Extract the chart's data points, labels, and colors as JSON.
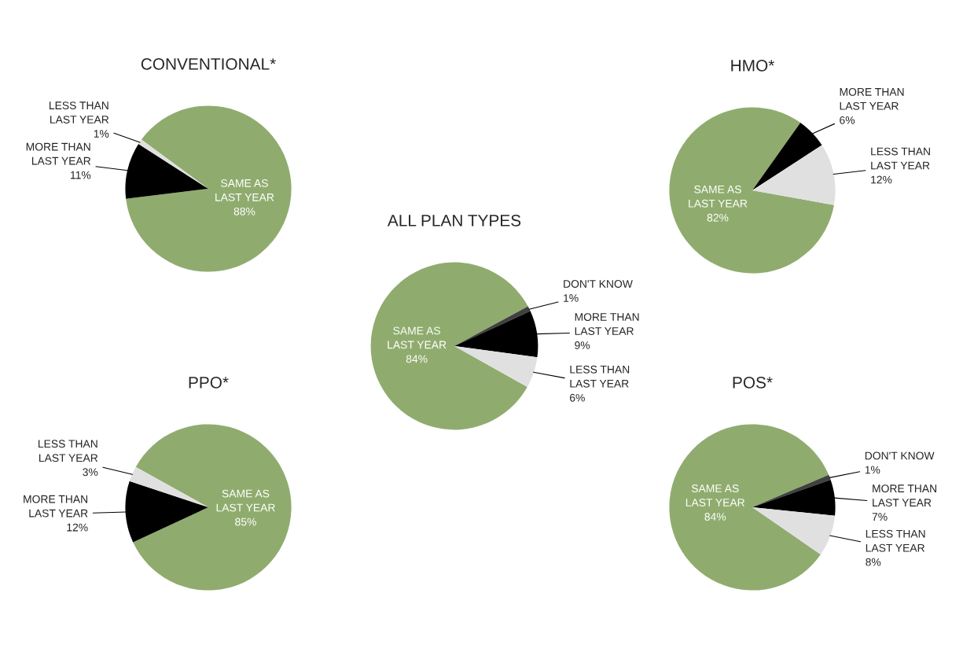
{
  "chart_data": [
    {
      "type": "pie",
      "title": "CONVENTIONAL*",
      "categories": [
        "SAME AS\nLAST YEAR",
        "MORE THAN\nLAST YEAR",
        "LESS THAN\nLAST YEAR"
      ],
      "values": [
        88,
        11,
        1
      ],
      "value_labels": [
        "88%",
        "11%",
        "1%"
      ],
      "colors": [
        "#8fac6e",
        "#000000",
        "#e0e0e0"
      ]
    },
    {
      "type": "pie",
      "title": "HMO*",
      "categories": [
        "SAME AS\nLAST YEAR",
        "MORE THAN\nLAST YEAR",
        "LESS THAN\nLAST YEAR"
      ],
      "values": [
        82,
        6,
        12
      ],
      "value_labels": [
        "82%",
        "6%",
        "12%"
      ],
      "colors": [
        "#8fac6e",
        "#000000",
        "#e0e0e0"
      ]
    },
    {
      "type": "pie",
      "title": "ALL PLAN TYPES",
      "categories": [
        "SAME AS\nLAST YEAR",
        "DON'T KNOW",
        "MORE THAN\nLAST YEAR",
        "LESS THAN\nLAST YEAR"
      ],
      "values": [
        84,
        1,
        9,
        6
      ],
      "value_labels": [
        "84%",
        "1%",
        "9%",
        "6%"
      ],
      "colors": [
        "#8fac6e",
        "#404040",
        "#000000",
        "#e0e0e0"
      ]
    },
    {
      "type": "pie",
      "title": "PPO*",
      "categories": [
        "SAME AS\nLAST YEAR",
        "MORE THAN\nLAST YEAR",
        "LESS THAN\nLAST YEAR"
      ],
      "values": [
        85,
        12,
        3
      ],
      "value_labels": [
        "85%",
        "12%",
        "3%"
      ],
      "colors": [
        "#8fac6e",
        "#000000",
        "#e0e0e0"
      ]
    },
    {
      "type": "pie",
      "title": "POS*",
      "categories": [
        "SAME AS\nLAST YEAR",
        "DON'T KNOW",
        "MORE THAN\nLAST YEAR",
        "LESS THAN\nLAST YEAR"
      ],
      "values": [
        84,
        1,
        7,
        8
      ],
      "value_labels": [
        "84%",
        "1%",
        "7%",
        "8%"
      ],
      "colors": [
        "#8fac6e",
        "#404040",
        "#000000",
        "#e0e0e0"
      ]
    }
  ]
}
